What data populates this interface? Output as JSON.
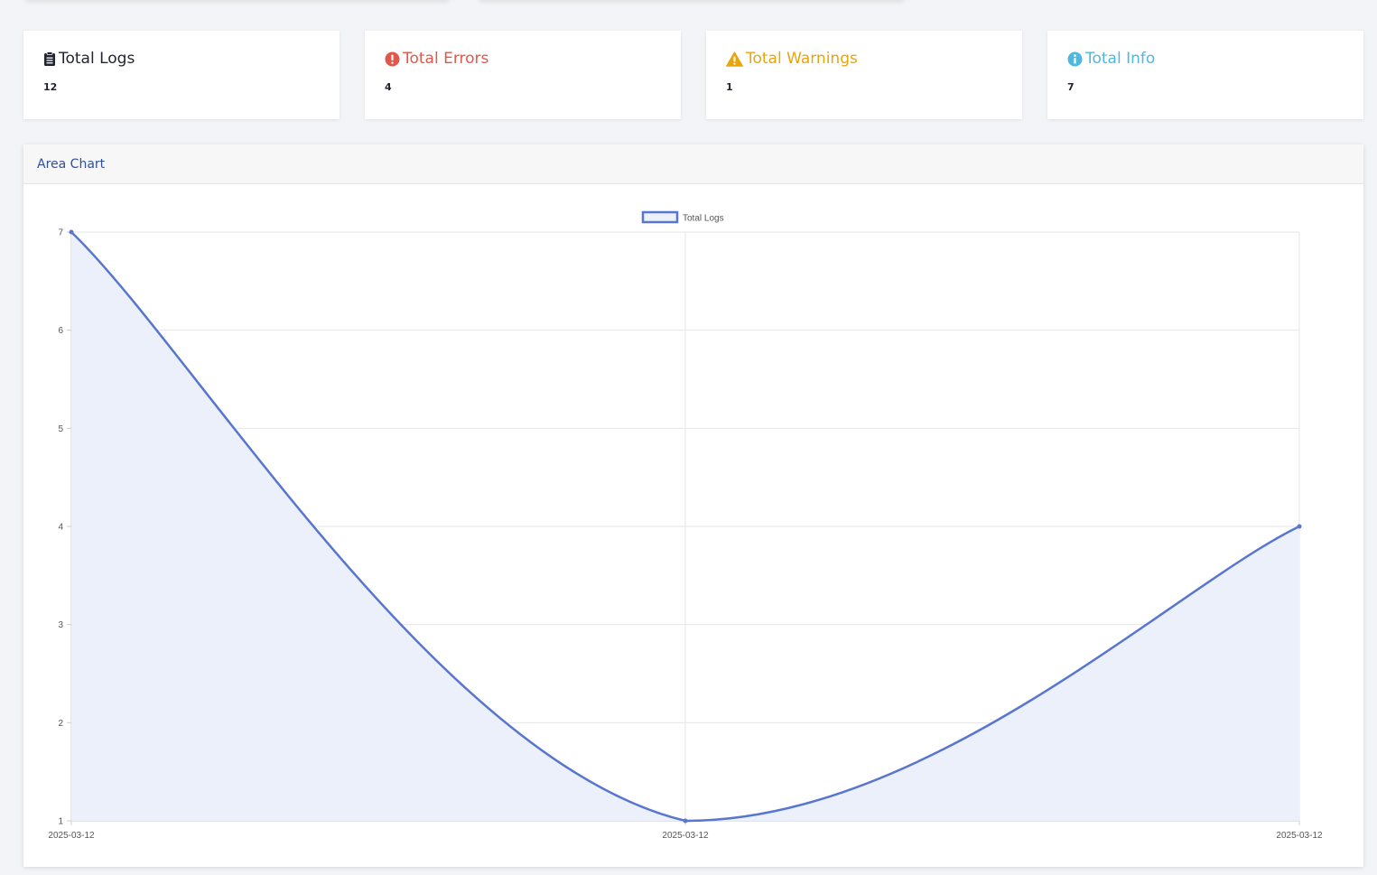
{
  "stats": [
    {
      "label": "Total Logs",
      "value": "12",
      "color": "#1f2430",
      "icon": "clipboard-icon"
    },
    {
      "label": "Total Errors",
      "value": "4",
      "color": "#e1584a",
      "icon": "exclamation-circle-icon"
    },
    {
      "label": "Total Warnings",
      "value": "1",
      "color": "#e8a50d",
      "icon": "warning-triangle-icon"
    },
    {
      "label": "Total Info",
      "value": "7",
      "color": "#4fb8e0",
      "icon": "info-circle-icon"
    }
  ],
  "chart_card": {
    "title": "Area Chart"
  },
  "chart_data": {
    "type": "area",
    "categories": [
      "2025-03-12",
      "2025-03-12",
      "2025-03-12"
    ],
    "series": [
      {
        "name": "Total Logs",
        "values": [
          7,
          1,
          4
        ],
        "color": "#5876cf",
        "fill": "#ecf0fa"
      }
    ],
    "y_ticks": [
      1,
      2,
      3,
      4,
      5,
      6,
      7
    ],
    "ylim": [
      1,
      7
    ],
    "legend": "top-center",
    "grid": true
  }
}
